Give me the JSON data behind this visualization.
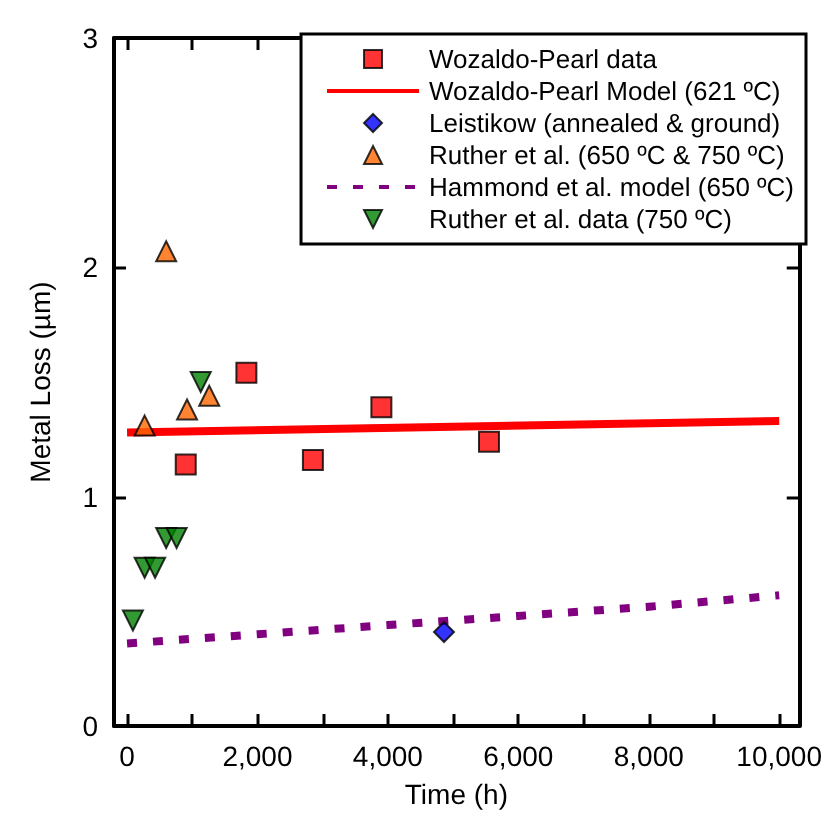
{
  "chart_data": {
    "type": "scatter",
    "xlabel": "Time (h)",
    "ylabel": "Metal Loss (µm)",
    "xlim": [
      -200,
      10300
    ],
    "ylim": [
      0,
      3
    ],
    "xticks": [
      0,
      {
        "value": 1000,
        "label": null
      },
      {
        "value": 2000,
        "label": "2,000"
      },
      {
        "value": 3000,
        "label": null
      },
      {
        "value": 4000,
        "label": "4,000"
      },
      {
        "value": 5000,
        "label": null
      },
      {
        "value": 6000,
        "label": "6,000"
      },
      {
        "value": 7000,
        "label": null
      },
      {
        "value": 8000,
        "label": "8,000"
      },
      {
        "value": 9000,
        "label": null
      },
      {
        "value": 10000,
        "label": "10,000"
      }
    ],
    "yticks": [
      0,
      1,
      2,
      3
    ],
    "grid": false,
    "legend": "top right",
    "series": [
      {
        "name": "Wozaldo-Pearl data",
        "type": "scatter",
        "marker": "square",
        "color": "#ff0000",
        "x": [
          900,
          1830,
          2850,
          3900,
          5550
        ],
        "values": [
          1.14,
          1.54,
          1.16,
          1.39,
          1.24
        ]
      },
      {
        "name": "Wozaldo-Pearl Model (621 ºC)",
        "type": "line",
        "marker": "none",
        "line_style": "solid",
        "color": "#ff0000",
        "x": [
          0,
          10000
        ],
        "values": [
          1.28,
          1.33
        ]
      },
      {
        "name": "Leistikow (annealed & ground)",
        "type": "scatter",
        "marker": "diamond",
        "color": "#0000ff",
        "x": [
          4860
        ],
        "values": [
          0.41
        ]
      },
      {
        "name": "Ruther et al. (650 ºC & 750 ºC)",
        "type": "scatter",
        "marker": "triangle",
        "color": "#ff6600",
        "x": [
          270,
          600,
          920,
          1260
        ],
        "values": [
          1.31,
          2.07,
          1.38,
          1.44
        ]
      },
      {
        "name": "Hammond et al. model (650 ºC)",
        "type": "line",
        "marker": "none",
        "line_style": "dashed",
        "color": "#800080",
        "x": [
          0,
          2000,
          4000,
          6000,
          8000,
          10000
        ],
        "values": [
          0.36,
          0.4,
          0.44,
          0.48,
          0.52,
          0.57
        ]
      },
      {
        "name": "Ruther et al. data (750 ºC)",
        "type": "scatter",
        "marker": "triangle-down",
        "color": "#008000",
        "x": [
          90,
          270,
          430,
          600,
          760,
          1130
        ],
        "values": [
          0.46,
          0.69,
          0.69,
          0.82,
          0.82,
          1.5
        ]
      }
    ]
  }
}
